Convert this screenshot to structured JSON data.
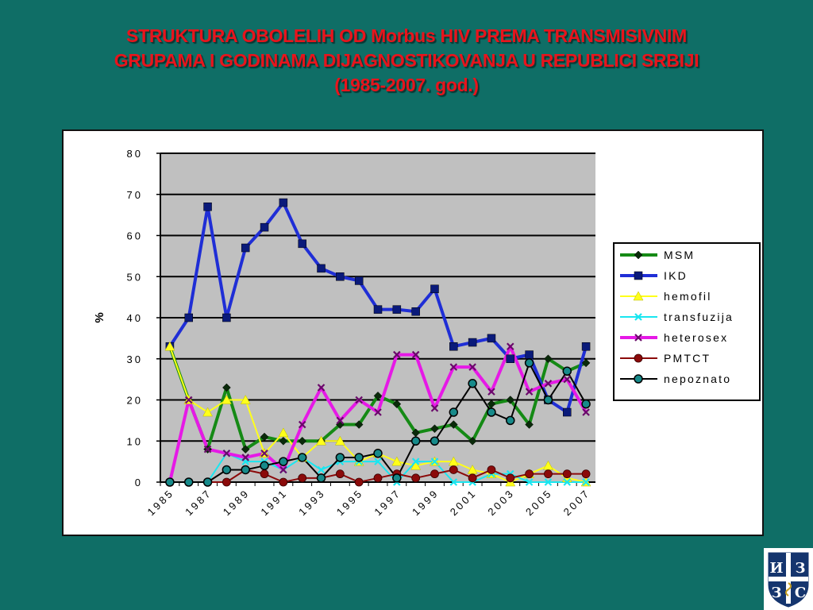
{
  "title": {
    "line1": "STRUKTURA OBOLELIH OD Morbus HIV PREMA TRANSMISIVNIM",
    "line2": "GRUPAMA I GODINAMA DIJAGNOSTIKOVANJA U REPUBLICI SRBIJI",
    "line3": "(1985-2007. god.)"
  },
  "logo": {
    "letters": [
      "И",
      "З",
      "З",
      "С"
    ]
  },
  "chart_data": {
    "type": "line",
    "ylabel": "%",
    "ylim": [
      0,
      80
    ],
    "yticks": [
      0,
      10,
      20,
      30,
      40,
      50,
      60,
      70,
      80
    ],
    "x": [
      1985,
      1986,
      1987,
      1988,
      1989,
      1990,
      1991,
      1992,
      1993,
      1994,
      1995,
      1996,
      1997,
      1998,
      1999,
      2000,
      2001,
      2002,
      2003,
      2004,
      2005,
      2006,
      2007
    ],
    "xticks": [
      1985,
      1987,
      1989,
      1991,
      1993,
      1995,
      1997,
      1999,
      2001,
      2003,
      2005,
      2007
    ],
    "grid": true,
    "legend_position": "right",
    "plot_background": "#c0c0c0",
    "series": [
      {
        "name": "MSM",
        "color": "#158a15",
        "marker": "diamond",
        "width": 4,
        "values": [
          33,
          20,
          8,
          23,
          8,
          11,
          10,
          10,
          10,
          14,
          14,
          21,
          19,
          12,
          13,
          14,
          10,
          19,
          20,
          14,
          30,
          27,
          29
        ]
      },
      {
        "name": "IKD",
        "color": "#1f2ed6",
        "marker": "square",
        "width": 4,
        "values": [
          33,
          40,
          67,
          40,
          57,
          62,
          68,
          58,
          52,
          50,
          49,
          42,
          42,
          41.5,
          47,
          33,
          34,
          35,
          30,
          31,
          20,
          17,
          33
        ]
      },
      {
        "name": "hemofil",
        "color": "#ffff1a",
        "marker": "triangle",
        "width": 2,
        "values": [
          33,
          20,
          17,
          20,
          20,
          7,
          12,
          6,
          10,
          10,
          5,
          7,
          5,
          4,
          5,
          5,
          3,
          2,
          0,
          2,
          4,
          1,
          0
        ]
      },
      {
        "name": "transfuzija",
        "color": "#19e6f0",
        "marker": "x",
        "width": 2,
        "values": [
          0,
          0,
          0,
          7,
          5,
          5,
          3,
          6,
          3,
          5,
          5,
          5,
          0,
          5,
          5,
          0,
          0,
          2,
          2,
          0,
          0,
          0,
          0
        ]
      },
      {
        "name": "heterosex",
        "color": "#e619e6",
        "marker": "cross",
        "width": 4,
        "values": [
          0,
          20,
          8,
          7,
          6,
          7,
          3,
          14,
          23,
          15,
          20,
          17,
          31,
          31,
          18,
          28,
          28,
          22,
          33,
          22,
          24,
          25,
          17
        ]
      },
      {
        "name": "PMTCT",
        "color": "#8b0a0a",
        "marker": "circle",
        "width": 2,
        "values": [
          0,
          0,
          0,
          0,
          3,
          2,
          0,
          1,
          1,
          2,
          0,
          1,
          2,
          1,
          2,
          3,
          1,
          3,
          1,
          2,
          2,
          2,
          2
        ]
      },
      {
        "name": "nepoznato",
        "color": "#000000",
        "marker": "circle-teal",
        "width": 2,
        "values": [
          0,
          0,
          0,
          3,
          3,
          4,
          5,
          6,
          1,
          6,
          6,
          7,
          1,
          10,
          10,
          17,
          24,
          17,
          15,
          29,
          20,
          27,
          19
        ]
      }
    ]
  }
}
